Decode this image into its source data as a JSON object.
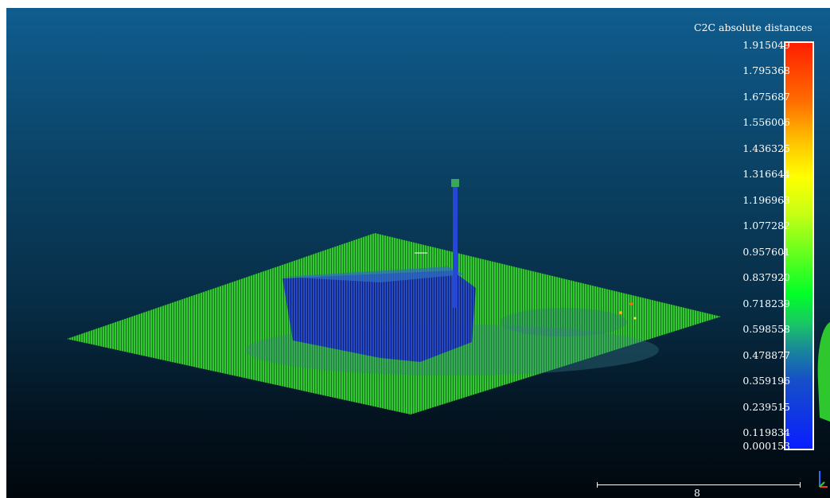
{
  "scalar_field": {
    "title": "C2C absolute distances",
    "ticks": [
      "1.915049",
      "1.795368",
      "1.675687",
      "1.556006",
      "1.436325",
      "1.316644",
      "1.196963",
      "1.077282",
      "0.957601",
      "0.837920",
      "0.718239",
      "0.598558",
      "0.478877",
      "0.359196",
      "0.239515",
      "0.119834",
      "0.000153"
    ]
  },
  "scale_bar": {
    "label": "8"
  },
  "colors": {
    "background_top": "#0f5d8f",
    "background_bottom": "#01070c",
    "points_primary": "#2ec82e",
    "points_object": "#1a3cd8"
  },
  "icons": [
    "axis-triad-icon"
  ]
}
